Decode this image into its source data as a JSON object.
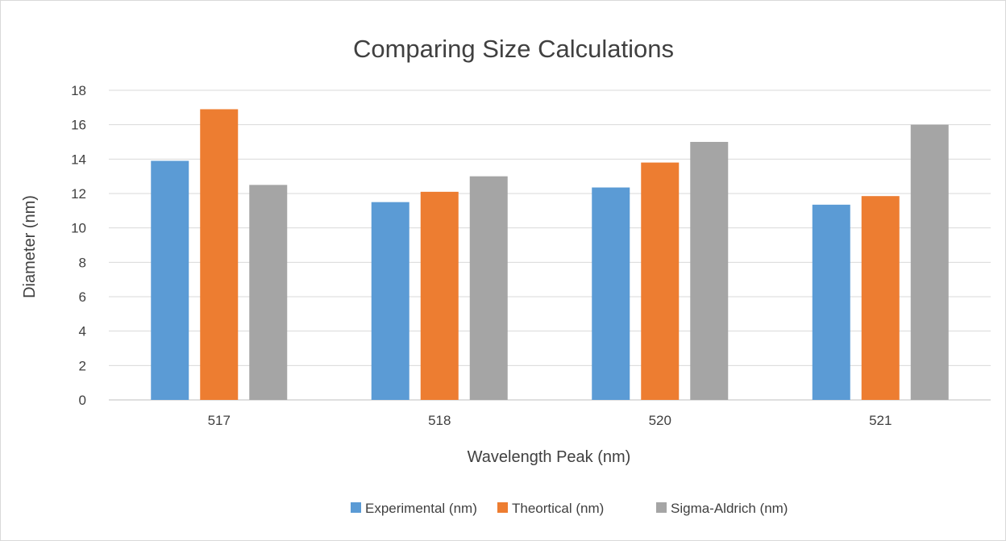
{
  "chart_data": {
    "type": "bar",
    "title": "Comparing Size Calculations",
    "xlabel": "Wavelength Peak (nm)",
    "ylabel": "Diameter (nm)",
    "categories": [
      "517",
      "518",
      "520",
      "521"
    ],
    "series": [
      {
        "name": "Experimental (nm)",
        "color": "#5b9bd5",
        "values": [
          13.9,
          11.5,
          12.35,
          11.35
        ]
      },
      {
        "name": "Theortical (nm)",
        "color": "#ed7d31",
        "values": [
          16.9,
          12.1,
          13.8,
          11.85
        ]
      },
      {
        "name": "Sigma-Aldrich (nm)",
        "color": "#a5a5a5",
        "values": [
          12.5,
          13.0,
          15.0,
          16.0
        ]
      }
    ],
    "ylim": [
      0,
      18
    ],
    "yticks": [
      "0",
      "2",
      "4",
      "6",
      "8",
      "10",
      "12",
      "14",
      "16",
      "18"
    ],
    "grid": true,
    "legend_position": "bottom"
  }
}
